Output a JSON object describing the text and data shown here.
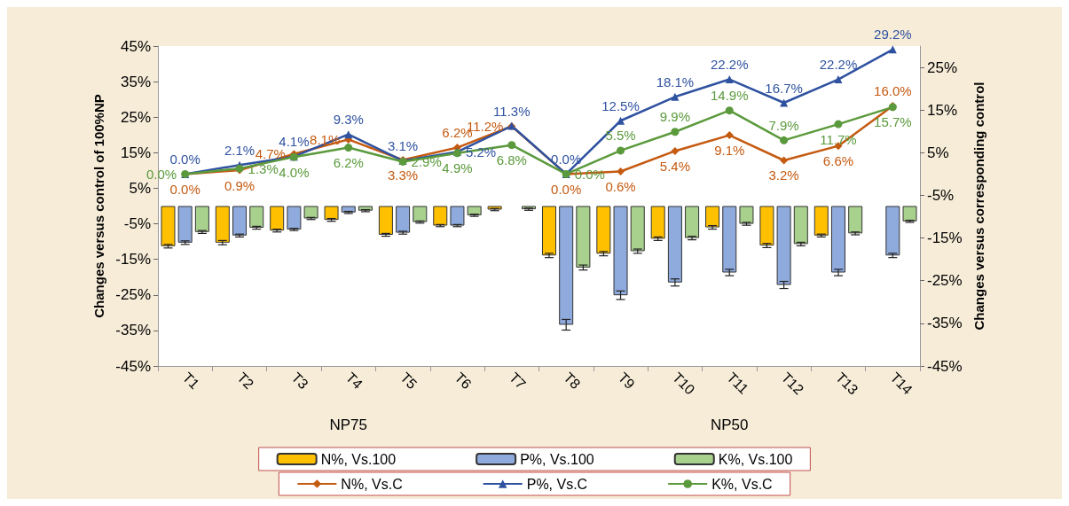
{
  "chart_data": {
    "type": "bar",
    "ylabel": "Changes versus control of 100%NP",
    "y2label": "Changes versus corresponding control",
    "categories": [
      "T1",
      "T2",
      "T3",
      "T4",
      "T5",
      "T6",
      "T7",
      "T8",
      "T9",
      "T10",
      "T11",
      "T12",
      "T13",
      "T14"
    ],
    "annotations": [
      "NP75",
      "NP50"
    ],
    "ylim": [
      -45,
      45
    ],
    "yticks": [
      {
        "value": -45,
        "label": "-45%"
      },
      {
        "value": -35,
        "label": "-35%"
      },
      {
        "value": -25,
        "label": "-25%"
      },
      {
        "value": -15,
        "label": "-15%"
      },
      {
        "value": -5,
        "label": "-5%"
      },
      {
        "value": 5,
        "label": "5%"
      },
      {
        "value": 15,
        "label": "15%"
      },
      {
        "value": 25,
        "label": "25%"
      },
      {
        "value": 35,
        "label": "35%"
      },
      {
        "value": 45,
        "label": "45%"
      }
    ],
    "y2lim": [
      -45,
      30
    ],
    "y2ticks": [
      {
        "value": -45,
        "label": "-45%"
      },
      {
        "value": -35,
        "label": "-35%"
      },
      {
        "value": -25,
        "label": "-25%"
      },
      {
        "value": -15,
        "label": "-15%"
      },
      {
        "value": -5,
        "label": "-5%"
      },
      {
        "value": 5,
        "label": "5%"
      },
      {
        "value": 15,
        "label": "15%"
      },
      {
        "value": 25,
        "label": "25%"
      }
    ],
    "grid": false,
    "legend": "bottom",
    "series": [
      {
        "name": "N%, Vs.100",
        "color": "#ffc000",
        "values": [
          -11.3,
          -10.3,
          -6.9,
          -3.9,
          -8.1,
          -5.5,
          -1.0,
          -13.9,
          -13.4,
          -9.2,
          -6.0,
          -11.1,
          -8.3,
          null
        ],
        "errors": [
          0.5,
          0.6,
          0.4,
          0.4,
          0.4,
          0.3,
          0.3,
          0.6,
          0.6,
          0.5,
          0.5,
          0.6,
          0.4,
          null
        ]
      },
      {
        "name": "P%, Vs.100",
        "color": "#8faadc",
        "values": [
          -10.3,
          -8.3,
          -6.6,
          -1.8,
          -7.5,
          -5.5,
          null,
          -33.4,
          -25.1,
          -21.5,
          -18.7,
          -22.2,
          -18.7,
          -13.9
        ],
        "errors": [
          0.5,
          0.4,
          0.3,
          0.3,
          0.4,
          0.3,
          null,
          1.5,
          1.2,
          1.0,
          0.9,
          1.0,
          0.9,
          0.6
        ]
      },
      {
        "name": "K%, Vs.100",
        "color": "#a9d18e",
        "values": [
          -7.3,
          -6.1,
          -3.5,
          -1.3,
          -4.5,
          -2.6,
          -0.9,
          -17.3,
          -12.7,
          -9.0,
          -5.0,
          -10.7,
          -7.7,
          -4.3
        ],
        "errors": [
          0.4,
          0.4,
          0.3,
          0.3,
          0.3,
          0.3,
          0.3,
          0.7,
          0.6,
          0.5,
          0.4,
          0.5,
          0.4,
          0.3
        ]
      },
      {
        "type": "line",
        "axis": "y2",
        "name": "N%, Vs.C",
        "color": "#c55a11",
        "marker": "diamond",
        "values": [
          0.0,
          0.9,
          4.7,
          8.1,
          3.3,
          6.2,
          11.2,
          0.0,
          0.6,
          5.4,
          9.1,
          3.2,
          6.6,
          16.0
        ],
        "value_labels": [
          "0.0%",
          "0.9%",
          "4.7%",
          "8.1%",
          "3.3%",
          "6.2%",
          "11.2%",
          "0.0%",
          "0.6%",
          "5.4%",
          "9.1%",
          "3.2%",
          "6.6%",
          "16.0%"
        ]
      },
      {
        "type": "line",
        "axis": "y2",
        "name": "P%, Vs.C",
        "color": "#2f52a0",
        "marker": "triangle",
        "values": [
          0.0,
          2.1,
          4.1,
          9.3,
          3.1,
          5.2,
          11.3,
          0.0,
          12.5,
          18.1,
          22.2,
          16.7,
          22.2,
          29.2
        ],
        "value_labels": [
          "0.0%",
          "2.1%",
          "4.1%",
          "9.3%",
          "3.1%",
          "5.2%",
          "11.3%",
          "0.0%",
          "12.5%",
          "18.1%",
          "22.2%",
          "16.7%",
          "22.2%",
          "29.2%"
        ]
      },
      {
        "type": "line",
        "axis": "y2",
        "name": "K%, Vs.C",
        "color": "#5b9a3c",
        "marker": "circle",
        "values": [
          0.0,
          1.3,
          4.0,
          6.2,
          2.9,
          4.9,
          6.8,
          0.0,
          5.5,
          9.9,
          14.9,
          7.9,
          11.7,
          15.7
        ],
        "value_labels": [
          "0.0%",
          "1.3%",
          "4.0%",
          "6.2%",
          "2.9%",
          "4.9%",
          "6.8%",
          "0.0%",
          "5.5%",
          "9.9%",
          "14.9%",
          "7.9%",
          "11.7%",
          "15.7%"
        ]
      }
    ]
  }
}
